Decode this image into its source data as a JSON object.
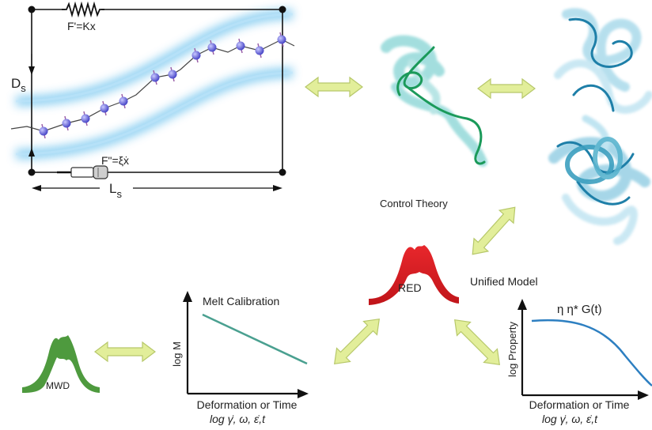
{
  "model_panel": {
    "spring_label": "F'=Kx",
    "dashpot_label": "F\"=ξẋ",
    "diameter_label_main": "D",
    "diameter_label_sub": "s",
    "length_label_main": "L",
    "length_label_sub": "s"
  },
  "center": {
    "control_theory_label": "Control Theory",
    "unified_model_label": "Unified Model",
    "red_label": "RED"
  },
  "mwd": {
    "label": "MWD"
  },
  "melt_calibration_plot": {
    "title": "Melt Calibration",
    "ylabel": "log M",
    "xlabel_line1": "Deformation or Time",
    "xlabel_line2": "log γ̇, ω, ε̇,t"
  },
  "property_plot": {
    "legend": "η  η* G(t)",
    "ylabel": "log Property",
    "xlabel_line1": "Deformation or Time",
    "xlabel_line2": "log γ̇, ω, ε̇,t"
  },
  "colors": {
    "tube_blue": "#6ec3ee",
    "bead_purple": "#6a6ae0",
    "arrow_fill": "#e2ee9a",
    "arrow_stroke": "#b7c86a",
    "red_curve": "#e11b22",
    "green_curve": "#4e9a3e",
    "calibration_line": "#4aa090",
    "property_curve": "#2d7fc1",
    "protein_teal": "#59c4c4",
    "protein_dark": "#1e7fa8"
  }
}
